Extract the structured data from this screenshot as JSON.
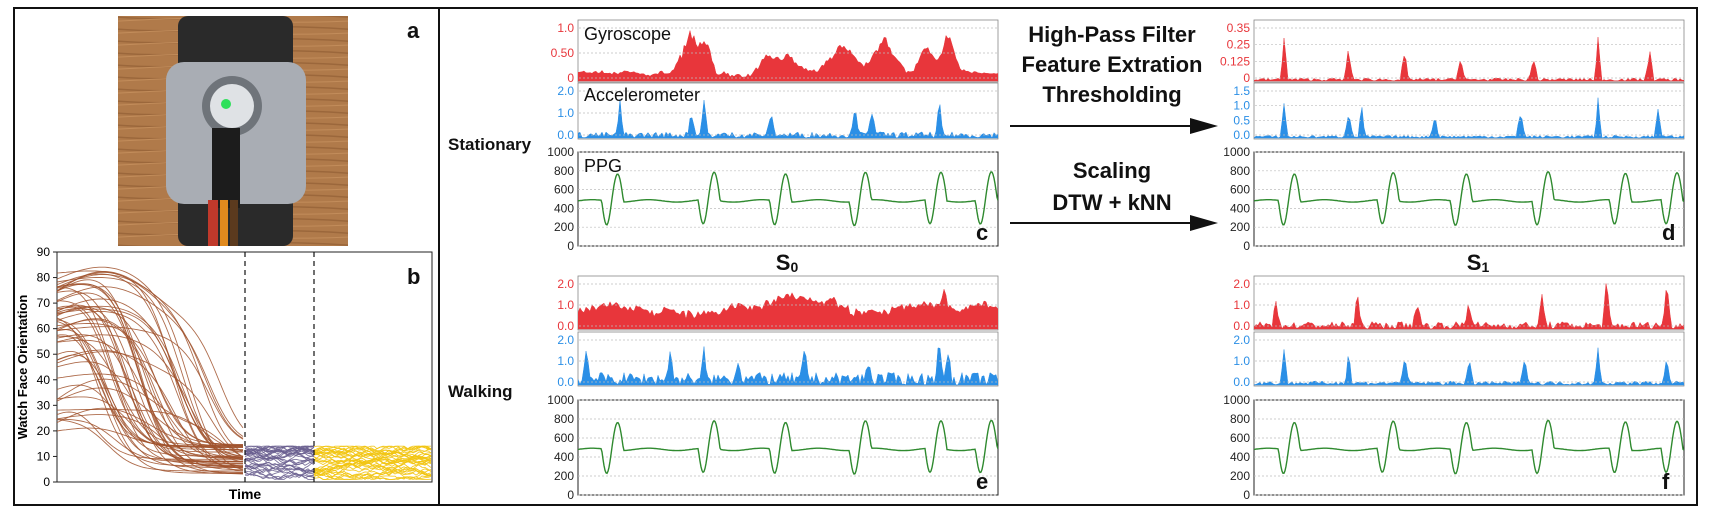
{
  "panels": {
    "a": {
      "letter": "a"
    },
    "b": {
      "letter": "b"
    },
    "c": {
      "letter": "c"
    },
    "d": {
      "letter": "d"
    },
    "e": {
      "letter": "e"
    },
    "f": {
      "letter": "f"
    }
  },
  "photo": {
    "description_icon": "smartwatch-sensor-photo"
  },
  "row_labels": {
    "stationary": "Stationary",
    "walking": "Walking"
  },
  "signal_labels": {
    "gyroscope": "Gyroscope",
    "accelerometer": "Accelerometer",
    "ppg": "PPG"
  },
  "process_top": {
    "line1": "High-Pass Filter",
    "line2": "Feature Extration",
    "line3": "Thresholding"
  },
  "process_bottom": {
    "line1": "Scaling",
    "line2": "DTW + kNN"
  },
  "set_labels": {
    "s0": {
      "main": "S",
      "sub": "0"
    },
    "s1": {
      "main": "S",
      "sub": "1"
    }
  },
  "colors": {
    "gyro": "#e8363b",
    "accel": "#2b8fe6",
    "ppg": "#2f8a2f",
    "brown": "#a0522d",
    "purple": "#6a5f8f",
    "yellow": "#f2c40f"
  },
  "chart_data": [
    {
      "id": "b",
      "type": "line",
      "title": "",
      "xlabel": "Time",
      "ylabel": "Watch Face Orientation",
      "ylim": [
        0,
        90
      ],
      "yticks": [
        0,
        10,
        20,
        30,
        40,
        50,
        60,
        70,
        80,
        90
      ],
      "groups": [
        "brown",
        "purple",
        "yellow"
      ],
      "vertical_lines": "dashed"
    },
    {
      "id": "c",
      "type": "area",
      "gyro_ticks": [
        "1.0",
        "0.50",
        "0"
      ],
      "accel_ticks": [
        "2.0",
        "1.0",
        "0.0"
      ],
      "ppg_ticks": [
        "1000",
        "800",
        "600",
        "400",
        "200",
        "0"
      ]
    },
    {
      "id": "d",
      "type": "area",
      "gyro_ticks": [
        "0.35",
        "0.25",
        "0.125",
        "0"
      ],
      "accel_ticks": [
        "1.5",
        "1.0",
        "0.5",
        "0.0"
      ],
      "ppg_ticks": [
        "1000",
        "800",
        "600",
        "400",
        "200",
        "0"
      ]
    },
    {
      "id": "e",
      "type": "area",
      "gyro_ticks": [
        "2.0",
        "1.0",
        "0.0"
      ],
      "accel_ticks": [
        "2.0",
        "1.0",
        "0.0"
      ],
      "ppg_ticks": [
        "1000",
        "800",
        "600",
        "400",
        "200",
        "0"
      ]
    },
    {
      "id": "f",
      "type": "area",
      "gyro_ticks": [
        "2.0",
        "1.0",
        "0.0"
      ],
      "accel_ticks": [
        "2.0",
        "1.0",
        "0.0"
      ],
      "ppg_ticks": [
        "1000",
        "800",
        "600",
        "400",
        "200",
        "0"
      ]
    }
  ]
}
